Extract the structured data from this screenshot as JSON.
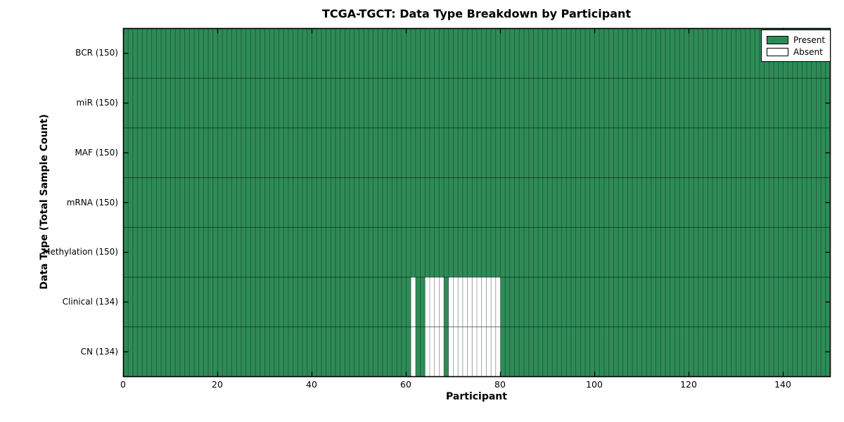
{
  "chart_data": {
    "type": "heatmap",
    "title": "TCGA-TGCT: Data Type Breakdown by Participant",
    "xlabel": "Participant",
    "ylabel": "Data Type (Total Sample Count)",
    "x_range": [
      0,
      150
    ],
    "x_ticks": [
      0,
      20,
      40,
      60,
      80,
      100,
      120,
      140
    ],
    "n_participants": 150,
    "rows": [
      {
        "label": "BCR (150)",
        "present_count": 150,
        "absent_participants": []
      },
      {
        "label": "miR (150)",
        "present_count": 150,
        "absent_participants": []
      },
      {
        "label": "MAF (150)",
        "present_count": 150,
        "absent_participants": []
      },
      {
        "label": "mRNA (150)",
        "present_count": 150,
        "absent_participants": []
      },
      {
        "label": "Methylation (150)",
        "present_count": 150,
        "absent_participants": []
      },
      {
        "label": "Clinical (134)",
        "present_count": 134,
        "absent_participants": [
          61,
          64,
          65,
          66,
          67,
          69,
          70,
          71,
          72,
          73,
          74,
          75,
          76,
          77,
          78,
          79
        ]
      },
      {
        "label": "CN (134)",
        "present_count": 134,
        "absent_participants": [
          61,
          64,
          65,
          66,
          67,
          69,
          70,
          71,
          72,
          73,
          74,
          75,
          76,
          77,
          78,
          79
        ]
      }
    ],
    "colors": {
      "present": "#2e8b57",
      "absent": "#ffffff",
      "cell_border": "#000000",
      "axes_border": "#000000"
    },
    "grid": "cell-borders",
    "legend_position": "upper right",
    "tick_direction": "in"
  },
  "legend": {
    "entries": [
      {
        "label": "Present",
        "color": "#2e8b57"
      },
      {
        "label": "Absent",
        "color": "#ffffff"
      }
    ]
  }
}
